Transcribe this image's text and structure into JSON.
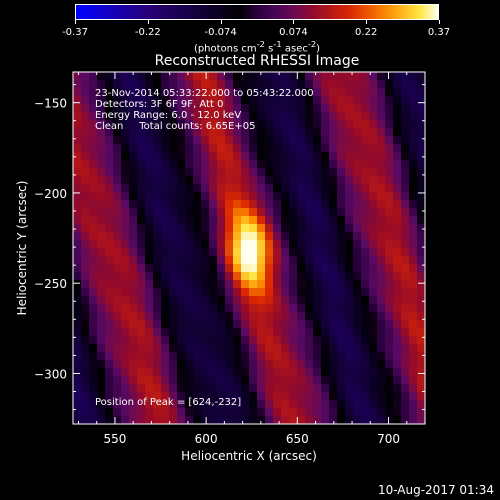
{
  "colorbar": {
    "ticks": [
      "-0.37",
      "-0.22",
      "-0.074",
      "0.074",
      "0.22",
      "0.37"
    ],
    "unit_html": "(photons cm<sup>-2</sup> s<sup>-1</sup> asec<sup>-2</sup>)"
  },
  "chart_data": {
    "type": "heatmap",
    "title": "Reconstructed RHESSI Image",
    "xlabel": "Heliocentric X (arcsec)",
    "ylabel": "Heliocentric Y (arcsec)",
    "xlim": [
      527,
      720
    ],
    "ylim": [
      -328,
      -133
    ],
    "xticks": [
      550,
      600,
      650,
      700
    ],
    "yticks": [
      -150,
      -200,
      -250,
      -300
    ],
    "zlim": [
      -0.37,
      0.37
    ],
    "peak": {
      "x": 624,
      "y": -232
    }
  },
  "annotations": {
    "time_range": "23-Nov-2014 05:33:22.000 to 05:43:22.000",
    "detectors": "Detectors: 3F 6F 9F, Att 0",
    "energy_range": "Energy Range: 6.0 - 12.0 keV",
    "clean_counts": "Clean     Total counts: 6.65E+05",
    "peak_position": "Position of Peak = [624,-232]"
  },
  "timestamp": "10-Aug-2017 01:34"
}
